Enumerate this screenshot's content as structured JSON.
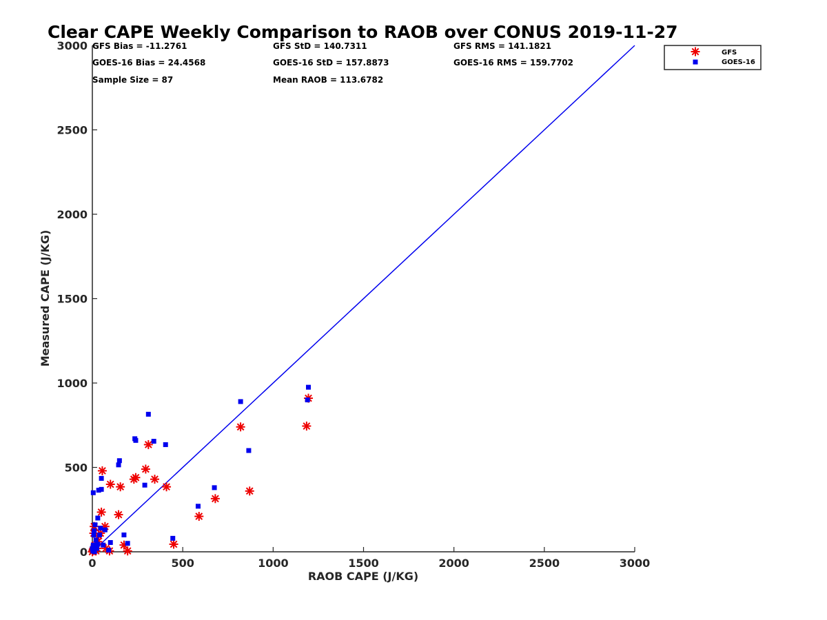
{
  "chart_data": {
    "type": "scatter",
    "title": "Clear CAPE Weekly Comparison to RAOB over CONUS 2019-11-27",
    "xlabel": "RAOB CAPE (J/KG)",
    "ylabel": "Measured CAPE (J/KG)",
    "xlim": [
      0,
      3000
    ],
    "ylim": [
      0,
      3000
    ],
    "xticks": [
      "0",
      "500",
      "1000",
      "1500",
      "2000",
      "2500",
      "3000"
    ],
    "yticks": [
      "0",
      "500",
      "1000",
      "1500",
      "2000",
      "2500",
      "3000"
    ],
    "grid": false,
    "legend_position": "top-right",
    "stats": [
      "GFS Bias = -11.2761",
      "GFS StD = 140.7311",
      "GFS RMS = 141.1821",
      "GOES-16 Bias = 24.4568",
      "GOES-16 StD = 157.8873",
      "GOES-16 RMS = 159.7702",
      "Sample Size = 87",
      "Mean RAOB = 113.6782"
    ],
    "reference_line": {
      "x": [
        0,
        3000
      ],
      "y": [
        0,
        3000
      ],
      "color": "#0000ee"
    },
    "series": [
      {
        "name": "GFS",
        "marker": "asterisk",
        "color": "#ee0000",
        "points": [
          [
            1195,
            910
          ],
          [
            1185,
            745
          ],
          [
            820,
            740
          ],
          [
            870,
            360
          ],
          [
            680,
            315
          ],
          [
            590,
            210
          ],
          [
            450,
            45
          ],
          [
            410,
            385
          ],
          [
            345,
            430
          ],
          [
            310,
            635
          ],
          [
            295,
            490
          ],
          [
            240,
            440
          ],
          [
            230,
            430
          ],
          [
            195,
            5
          ],
          [
            175,
            40
          ],
          [
            155,
            385
          ],
          [
            145,
            220
          ],
          [
            100,
            400
          ],
          [
            95,
            5
          ],
          [
            75,
            20
          ],
          [
            70,
            150
          ],
          [
            55,
            480
          ],
          [
            50,
            235
          ],
          [
            45,
            110
          ],
          [
            35,
            95
          ],
          [
            30,
            60
          ],
          [
            25,
            20
          ],
          [
            20,
            5
          ],
          [
            15,
            40
          ],
          [
            10,
            150
          ],
          [
            8,
            110
          ],
          [
            5,
            10
          ],
          [
            3,
            5
          ],
          [
            0,
            0
          ]
        ]
      },
      {
        "name": "GOES-16",
        "marker": "square",
        "color": "#0000ee",
        "points": [
          [
            1195,
            975
          ],
          [
            1190,
            900
          ],
          [
            820,
            890
          ],
          [
            865,
            600
          ],
          [
            675,
            380
          ],
          [
            585,
            270
          ],
          [
            445,
            80
          ],
          [
            405,
            635
          ],
          [
            340,
            655
          ],
          [
            310,
            815
          ],
          [
            290,
            395
          ],
          [
            240,
            660
          ],
          [
            235,
            670
          ],
          [
            195,
            50
          ],
          [
            175,
            100
          ],
          [
            150,
            540
          ],
          [
            145,
            515
          ],
          [
            100,
            55
          ],
          [
            90,
            10
          ],
          [
            70,
            130
          ],
          [
            60,
            40
          ],
          [
            50,
            435
          ],
          [
            50,
            370
          ],
          [
            45,
            140
          ],
          [
            40,
            100
          ],
          [
            35,
            365
          ],
          [
            30,
            200
          ],
          [
            30,
            45
          ],
          [
            25,
            20
          ],
          [
            20,
            70
          ],
          [
            15,
            160
          ],
          [
            10,
            125
          ],
          [
            8,
            100
          ],
          [
            5,
            40
          ],
          [
            5,
            350
          ],
          [
            3,
            5
          ],
          [
            0,
            20
          ],
          [
            12,
            0
          ]
        ]
      }
    ]
  }
}
